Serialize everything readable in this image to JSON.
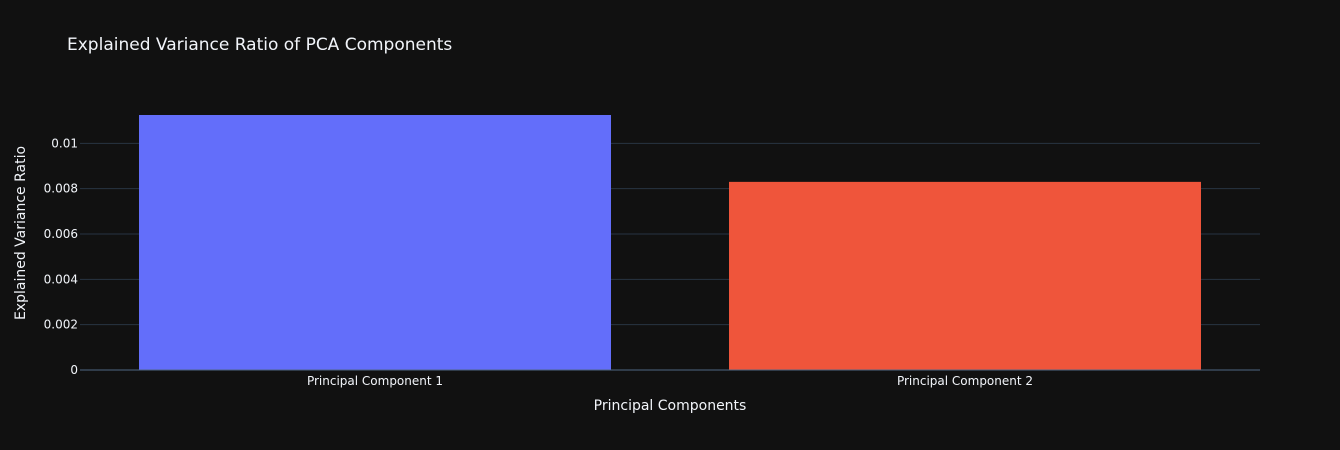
{
  "chart_data": {
    "type": "bar",
    "title": "Explained Variance Ratio of PCA Components",
    "xlabel": "Principal Components",
    "ylabel": "Explained Variance Ratio",
    "categories": [
      "Principal Component 1",
      "Principal Component 2"
    ],
    "values": [
      0.01125,
      0.0083
    ],
    "bar_colors": [
      "#636efa",
      "#ef553b"
    ],
    "ylim": [
      0,
      0.01125
    ],
    "yticks": [
      0,
      0.002,
      0.004,
      0.006,
      0.008,
      0.01
    ],
    "ytick_labels": [
      "0",
      "0.002",
      "0.004",
      "0.006",
      "0.008",
      "0.01"
    ],
    "grid": true,
    "legend": "none"
  },
  "colors": {
    "background": "#111111",
    "grid": "#283442",
    "text": "#f2f5fa"
  }
}
